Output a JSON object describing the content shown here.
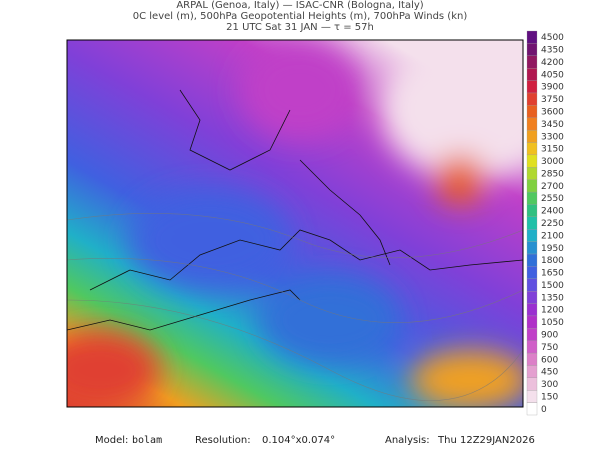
{
  "header": {
    "lines": [
      "ARPAL (Genoa, Italy)  —  ISAC-CNR (Bologna, Italy)",
      "0C level (m), 500hPa Geopotential Heights (m), 700hPa Winds (kn)",
      "21 UTC Sat 31 JAN  —  τ = 57h"
    ]
  },
  "colorbar": {
    "levels": [
      0,
      150,
      300,
      450,
      600,
      750,
      900,
      1050,
      1200,
      1350,
      1500,
      1650,
      1800,
      1950,
      2100,
      2250,
      2400,
      2550,
      2700,
      2850,
      3000,
      3150,
      3300,
      3450,
      3600,
      3750,
      3900,
      4050,
      4200,
      4350,
      4500
    ],
    "colors": [
      "#ffffff",
      "#f4e0ec",
      "#ecc0dc",
      "#e4a0d0",
      "#dc80c8",
      "#d060c8",
      "#c040c8",
      "#b030c8",
      "#9a30d0",
      "#8040d8",
      "#6050e0",
      "#4060e0",
      "#3070d8",
      "#2890d0",
      "#20b0c8",
      "#20c0a8",
      "#30c080",
      "#50c860",
      "#80d040",
      "#b0d830",
      "#e0e020",
      "#f0c020",
      "#f0a020",
      "#f08020",
      "#e86020",
      "#e04030",
      "#d02040",
      "#b01850",
      "#901860",
      "#701470",
      "#601080"
    ]
  },
  "footer": {
    "model_label": "Model:",
    "model": "bolam",
    "resolution_label": "Resolution:",
    "resolution": "0.104°x0.074°",
    "analysis_label": "Analysis:",
    "analysis": "Thu 12Z29JAN2026"
  }
}
